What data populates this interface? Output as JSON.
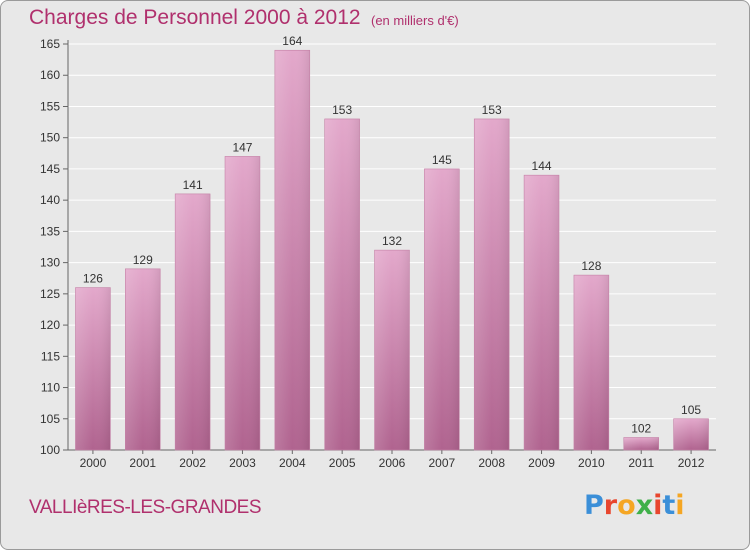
{
  "title": "Charges de Personnel 2000 à 2012",
  "unit_note": "(en milliers d'€)",
  "town": "VALLIèRES-LES-GRANDES",
  "logo": {
    "text": "Proxiti",
    "colors": [
      "#3b8fd8",
      "#e8462e",
      "#f5a623",
      "#3fb04a",
      "#e8462e",
      "#3b8fd8",
      "#f5a623"
    ]
  },
  "chart_data": {
    "type": "bar",
    "categories": [
      "2000",
      "2001",
      "2002",
      "2003",
      "2004",
      "2005",
      "2006",
      "2007",
      "2008",
      "2009",
      "2010",
      "2011",
      "2012"
    ],
    "values": [
      126,
      129,
      141,
      147,
      164,
      153,
      132,
      145,
      153,
      144,
      128,
      102,
      105
    ],
    "ylim": [
      100,
      165
    ],
    "yticks": [
      100,
      105,
      110,
      115,
      120,
      125,
      130,
      135,
      140,
      145,
      150,
      155,
      160,
      165
    ],
    "grid": "horizontal",
    "bar_color": "#d98ab5"
  }
}
